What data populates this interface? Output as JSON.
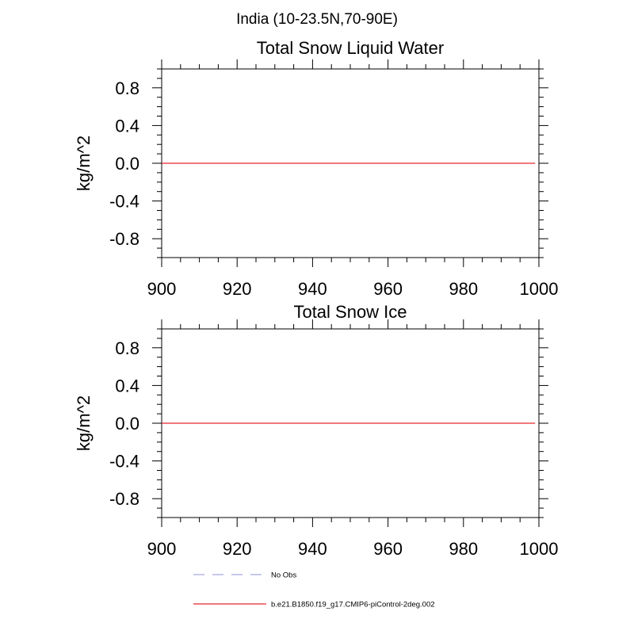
{
  "figure": {
    "suptitle": "India (10-23.5N,70-90E)"
  },
  "chart_data": [
    {
      "type": "line",
      "title": "Total Snow Liquid Water",
      "xlabel": "",
      "ylabel": "kg/m^2",
      "xlim": [
        900,
        1000
      ],
      "ylim": [
        -1.0,
        1.0
      ],
      "xticks": [
        900,
        920,
        940,
        960,
        980,
        1000
      ],
      "xtick_labels": [
        "900",
        "920",
        "940",
        "960",
        "980",
        "1000"
      ],
      "yticks": [
        0.8,
        0.4,
        0.0,
        -0.4,
        -0.8
      ],
      "ytick_labels": [
        "0.8",
        "0.4",
        "0.0",
        "-0.4",
        "-0.8"
      ],
      "grid": false,
      "series": [
        {
          "name": "b.e21.B1850.f19_g17.CMIP6-piControl-2deg.002",
          "color": "#e8272c",
          "style": "solid",
          "x": [
            900,
            999
          ],
          "y": [
            0.0,
            0.0
          ]
        }
      ]
    },
    {
      "type": "line",
      "title": "Total Snow Ice",
      "xlabel": "",
      "ylabel": "kg/m^2",
      "xlim": [
        900,
        1000
      ],
      "ylim": [
        -1.0,
        1.0
      ],
      "xticks": [
        900,
        920,
        940,
        960,
        980,
        1000
      ],
      "xtick_labels": [
        "900",
        "920",
        "940",
        "960",
        "980",
        "1000"
      ],
      "yticks": [
        0.8,
        0.4,
        0.0,
        -0.4,
        -0.8
      ],
      "ytick_labels": [
        "0.8",
        "0.4",
        "0.0",
        "-0.4",
        "-0.8"
      ],
      "grid": false,
      "series": [
        {
          "name": "b.e21.B1850.f19_g17.CMIP6-piControl-2deg.002",
          "color": "#e8272c",
          "style": "solid",
          "x": [
            900,
            999
          ],
          "y": [
            0.0,
            0.0
          ]
        }
      ]
    }
  ],
  "legend": {
    "placement": "bottom",
    "entries": [
      {
        "label": "No Obs",
        "color": "#a7a7e0",
        "style": "dashed"
      },
      {
        "label": "b.e21.B1850.f19_g17.CMIP6-piControl-2deg.002",
        "color": "#e8272c",
        "style": "solid"
      }
    ]
  }
}
